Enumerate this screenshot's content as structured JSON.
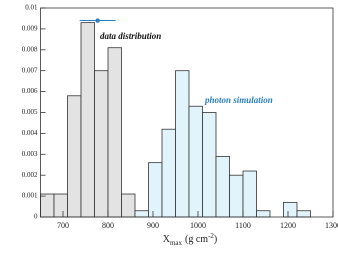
{
  "chart_data": {
    "type": "histogram",
    "xlabel": {
      "text": "X",
      "sub": "max",
      "unit": "(g cm",
      "sup": "-2",
      "end": ")"
    },
    "xlim": [
      650,
      1300
    ],
    "xticks": [
      700,
      800,
      900,
      1000,
      1100,
      1200,
      1300
    ],
    "ylim": [
      0,
      0.01
    ],
    "yticks": [
      0,
      0.001,
      0.002,
      0.003,
      0.004,
      0.005,
      0.006,
      0.007,
      0.008,
      0.009,
      0.01
    ],
    "series": [
      {
        "name": "data distribution",
        "color": "#e3e3e3",
        "label_color": "#111111",
        "bins": [
          650,
          680,
          710,
          740,
          770,
          800,
          830,
          860
        ],
        "values": [
          0.0011,
          0.0011,
          0.0058,
          0.0093,
          0.007,
          0.0081,
          0.0011
        ]
      },
      {
        "name": "photon simulation",
        "color": "#e2f4fb",
        "label_color": "#2a7fc0",
        "bins": [
          860,
          890,
          920,
          950,
          980,
          1010,
          1040,
          1070,
          1100,
          1130,
          1160,
          1190,
          1220,
          1250
        ],
        "values": [
          0.0003,
          0.0026,
          0.0042,
          0.007,
          0.0053,
          0.005,
          0.0029,
          0.002,
          0.0022,
          0.0003,
          0.0,
          0.0007,
          0.0003
        ]
      }
    ],
    "marker": {
      "x": 777,
      "y": 0.0094,
      "xerr": 40,
      "color": "#2a7fc0"
    }
  }
}
